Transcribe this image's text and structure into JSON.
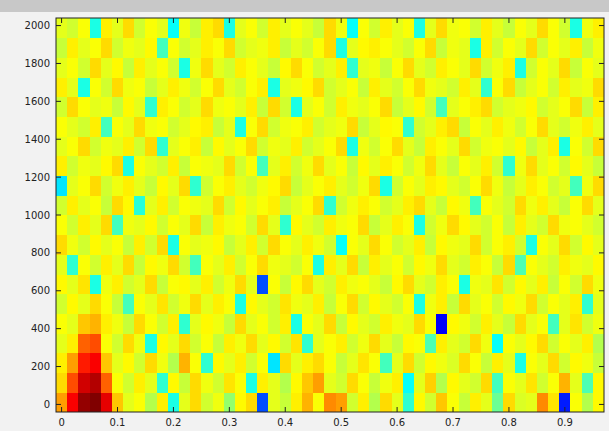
{
  "chart_data": {
    "type": "heatmap",
    "xlim": [
      -0.01,
      0.97
    ],
    "ylim": [
      -40,
      2040
    ],
    "xticks": [
      0,
      0.1,
      0.2,
      0.3,
      0.4,
      0.5,
      0.6,
      0.7,
      0.8,
      0.9
    ],
    "yticks": [
      0,
      200,
      400,
      600,
      800,
      1000,
      1200,
      1400,
      1600,
      1800,
      2000
    ],
    "color_range": [
      0,
      100
    ],
    "x_edges": [
      -0.01,
      0.01,
      0.03,
      0.05,
      0.07,
      0.09,
      0.11,
      0.13,
      0.15,
      0.17,
      0.19,
      0.21,
      0.23,
      0.25,
      0.27,
      0.29,
      0.31,
      0.33,
      0.35,
      0.37,
      0.39,
      0.41,
      0.43,
      0.45,
      0.47,
      0.49,
      0.51,
      0.53,
      0.55,
      0.57,
      0.59,
      0.61,
      0.63,
      0.65,
      0.67,
      0.69,
      0.71,
      0.73,
      0.75,
      0.77,
      0.79,
      0.81,
      0.83,
      0.85,
      0.87,
      0.89,
      0.91,
      0.93,
      0.95,
      0.97
    ],
    "y_edges": [
      -40,
      64,
      168,
      272,
      376,
      480,
      584,
      688,
      792,
      896,
      1000,
      1104,
      1208,
      1312,
      1416,
      1520,
      1624,
      1728,
      1832,
      1936,
      2040
    ],
    "cells": [
      [
        72,
        88,
        98,
        100,
        90,
        68,
        60,
        62,
        55,
        64,
        40,
        60,
        66,
        58,
        61,
        52,
        63,
        66,
        20,
        60,
        57,
        64,
        70,
        62,
        74,
        72,
        58,
        64,
        55,
        66,
        60,
        42,
        63,
        58,
        68,
        62,
        57,
        64,
        60,
        48,
        66,
        59,
        60,
        74,
        65,
        15,
        62,
        55,
        63
      ],
      [
        66,
        80,
        92,
        95,
        78,
        62,
        58,
        64,
        60,
        42,
        63,
        57,
        66,
        61,
        58,
        65,
        62,
        40,
        64,
        60,
        55,
        63,
        68,
        72,
        60,
        58,
        66,
        62,
        57,
        61,
        64,
        38,
        60,
        67,
        55,
        63,
        60,
        58,
        66,
        44,
        62,
        60,
        65,
        58,
        62,
        70,
        60,
        45,
        63
      ],
      [
        64,
        72,
        85,
        88,
        68,
        60,
        63,
        58,
        66,
        61,
        55,
        70,
        62,
        42,
        63,
        60,
        64,
        58,
        62,
        35,
        66,
        60,
        64,
        66,
        62,
        57,
        60,
        65,
        62,
        44,
        60,
        66,
        58,
        63,
        61,
        59,
        66,
        62,
        57,
        64,
        60,
        40,
        62,
        60,
        66,
        58,
        63,
        61,
        57
      ],
      [
        60,
        64,
        78,
        80,
        62,
        58,
        66,
        61,
        40,
        63,
        60,
        66,
        58,
        62,
        57,
        64,
        61,
        66,
        60,
        63,
        58,
        65,
        42,
        60,
        62,
        64,
        58,
        61,
        66,
        60,
        57,
        63,
        62,
        45,
        64,
        60,
        58,
        66,
        61,
        38,
        62,
        60,
        63,
        66,
        58,
        62,
        60,
        64,
        55
      ],
      [
        62,
        60,
        68,
        70,
        64,
        61,
        57,
        66,
        62,
        58,
        64,
        42,
        60,
        63,
        61,
        57,
        66,
        60,
        62,
        58,
        64,
        40,
        62,
        60,
        66,
        57,
        63,
        60,
        58,
        64,
        61,
        60,
        66,
        62,
        12,
        63,
        61,
        58,
        64,
        60,
        57,
        66,
        60,
        62,
        44,
        60,
        65,
        58,
        61
      ],
      [
        58,
        63,
        60,
        66,
        62,
        57,
        44,
        62,
        60,
        65,
        58,
        61,
        66,
        60,
        64,
        62,
        40,
        63,
        60,
        58,
        65,
        61,
        60,
        64,
        57,
        62,
        66,
        58,
        63,
        60,
        58,
        62,
        40,
        61,
        64,
        57,
        66,
        60,
        62,
        58,
        63,
        61,
        66,
        58,
        62,
        60,
        64,
        42,
        60
      ],
      [
        63,
        60,
        65,
        40,
        61,
        64,
        58,
        60,
        66,
        57,
        62,
        63,
        60,
        64,
        58,
        61,
        66,
        60,
        20,
        62,
        57,
        63,
        66,
        60,
        58,
        64,
        61,
        62,
        60,
        57,
        63,
        66,
        60,
        58,
        64,
        62,
        40,
        61,
        60,
        65,
        58,
        63,
        60,
        64,
        57,
        62,
        58,
        66,
        61
      ],
      [
        60,
        42,
        62,
        58,
        64,
        60,
        66,
        57,
        63,
        61,
        66,
        58,
        44,
        62,
        60,
        64,
        58,
        62,
        66,
        61,
        60,
        58,
        62,
        40,
        64,
        60,
        66,
        57,
        64,
        60,
        62,
        58,
        63,
        61,
        66,
        60,
        58,
        64,
        62,
        57,
        66,
        45,
        62,
        60,
        58,
        64,
        61,
        60,
        63
      ],
      [
        66,
        61,
        58,
        63,
        60,
        62,
        57,
        64,
        58,
        66,
        40,
        62,
        60,
        61,
        63,
        57,
        60,
        64,
        58,
        66,
        62,
        60,
        64,
        61,
        58,
        38,
        62,
        60,
        66,
        62,
        58,
        60,
        64,
        57,
        63,
        61,
        60,
        66,
        58,
        62,
        64,
        58,
        40,
        62,
        60,
        66,
        58,
        63,
        60
      ],
      [
        62,
        58,
        64,
        60,
        66,
        44,
        61,
        60,
        63,
        58,
        62,
        60,
        66,
        57,
        64,
        61,
        62,
        58,
        66,
        60,
        42,
        63,
        60,
        58,
        64,
        61,
        62,
        66,
        57,
        60,
        64,
        62,
        40,
        58,
        61,
        66,
        63,
        60,
        58,
        62,
        57,
        64,
        60,
        58,
        66,
        61,
        62,
        60,
        58
      ],
      [
        58,
        64,
        60,
        62,
        57,
        66,
        63,
        41,
        60,
        64,
        58,
        62,
        61,
        60,
        66,
        58,
        63,
        60,
        62,
        64,
        57,
        60,
        62,
        66,
        42,
        58,
        61,
        64,
        62,
        58,
        60,
        64,
        66,
        60,
        57,
        63,
        61,
        44,
        62,
        60,
        58,
        66,
        61,
        64,
        60,
        57,
        62,
        66,
        60
      ],
      [
        35,
        60,
        62,
        66,
        58,
        61,
        64,
        60,
        57,
        63,
        60,
        66,
        42,
        58,
        62,
        64,
        60,
        58,
        61,
        63,
        66,
        57,
        60,
        62,
        64,
        60,
        58,
        61,
        66,
        40,
        58,
        62,
        60,
        64,
        63,
        60,
        58,
        62,
        66,
        61,
        57,
        60,
        64,
        62,
        58,
        60,
        44,
        61,
        66
      ],
      [
        64,
        58,
        61,
        60,
        63,
        66,
        40,
        62,
        60,
        58,
        64,
        57,
        62,
        61,
        60,
        66,
        58,
        62,
        44,
        60,
        64,
        58,
        61,
        66,
        60,
        62,
        57,
        63,
        60,
        64,
        62,
        58,
        61,
        66,
        60,
        57,
        62,
        60,
        64,
        58,
        42,
        61,
        66,
        60,
        62,
        58,
        63,
        60,
        57
      ],
      [
        60,
        62,
        66,
        58,
        61,
        60,
        64,
        58,
        66,
        42,
        60,
        62,
        64,
        57,
        63,
        60,
        62,
        66,
        58,
        61,
        60,
        64,
        58,
        60,
        62,
        66,
        40,
        61,
        58,
        62,
        66,
        60,
        57,
        64,
        62,
        60,
        66,
        58,
        61,
        62,
        60,
        63,
        57,
        60,
        64,
        40,
        62,
        58,
        66
      ],
      [
        62,
        60,
        58,
        64,
        44,
        62,
        60,
        66,
        61,
        62,
        58,
        60,
        63,
        64,
        57,
        60,
        40,
        62,
        66,
        58,
        61,
        62,
        64,
        58,
        60,
        61,
        66,
        57,
        60,
        63,
        62,
        42,
        58,
        60,
        64,
        66,
        57,
        62,
        60,
        64,
        61,
        58,
        62,
        66,
        60,
        58,
        61,
        64,
        60
      ],
      [
        58,
        66,
        62,
        60,
        61,
        57,
        63,
        60,
        42,
        64,
        62,
        58,
        60,
        66,
        61,
        62,
        60,
        64,
        57,
        66,
        58,
        40,
        60,
        62,
        58,
        64,
        61,
        60,
        62,
        66,
        57,
        60,
        63,
        58,
        44,
        60,
        62,
        64,
        66,
        58,
        60,
        61,
        63,
        58,
        60,
        62,
        66,
        57,
        64
      ],
      [
        64,
        60,
        40,
        62,
        58,
        66,
        61,
        62,
        57,
        60,
        64,
        61,
        58,
        62,
        66,
        60,
        58,
        62,
        64,
        40,
        60,
        61,
        63,
        66,
        58,
        60,
        62,
        57,
        64,
        60,
        58,
        62,
        66,
        61,
        60,
        58,
        64,
        60,
        42,
        62,
        66,
        57,
        60,
        62,
        58,
        64,
        60,
        61,
        66
      ],
      [
        60,
        62,
        58,
        66,
        60,
        63,
        57,
        64,
        60,
        62,
        58,
        40,
        61,
        66,
        60,
        58,
        64,
        62,
        60,
        57,
        63,
        66,
        62,
        58,
        60,
        64,
        42,
        60,
        61,
        57,
        62,
        66,
        60,
        58,
        64,
        62,
        60,
        66,
        58,
        61,
        64,
        40,
        58,
        62,
        60,
        66,
        57,
        62,
        60
      ],
      [
        57,
        64,
        60,
        62,
        66,
        58,
        61,
        60,
        63,
        44,
        62,
        58,
        60,
        64,
        62,
        66,
        58,
        60,
        61,
        64,
        57,
        60,
        58,
        62,
        66,
        40,
        60,
        63,
        64,
        62,
        60,
        58,
        62,
        66,
        57,
        61,
        60,
        40,
        64,
        58,
        62,
        60,
        66,
        58,
        62,
        60,
        64,
        57,
        61
      ],
      [
        60,
        58,
        62,
        40,
        64,
        60,
        66,
        58,
        62,
        60,
        38,
        61,
        57,
        64,
        66,
        40,
        60,
        62,
        58,
        64,
        60,
        62,
        60,
        57,
        66,
        61,
        38,
        62,
        58,
        64,
        60,
        62,
        40,
        60,
        66,
        61,
        62,
        58,
        64,
        60,
        57,
        62,
        60,
        66,
        62,
        58,
        40,
        61,
        64
      ]
    ]
  }
}
